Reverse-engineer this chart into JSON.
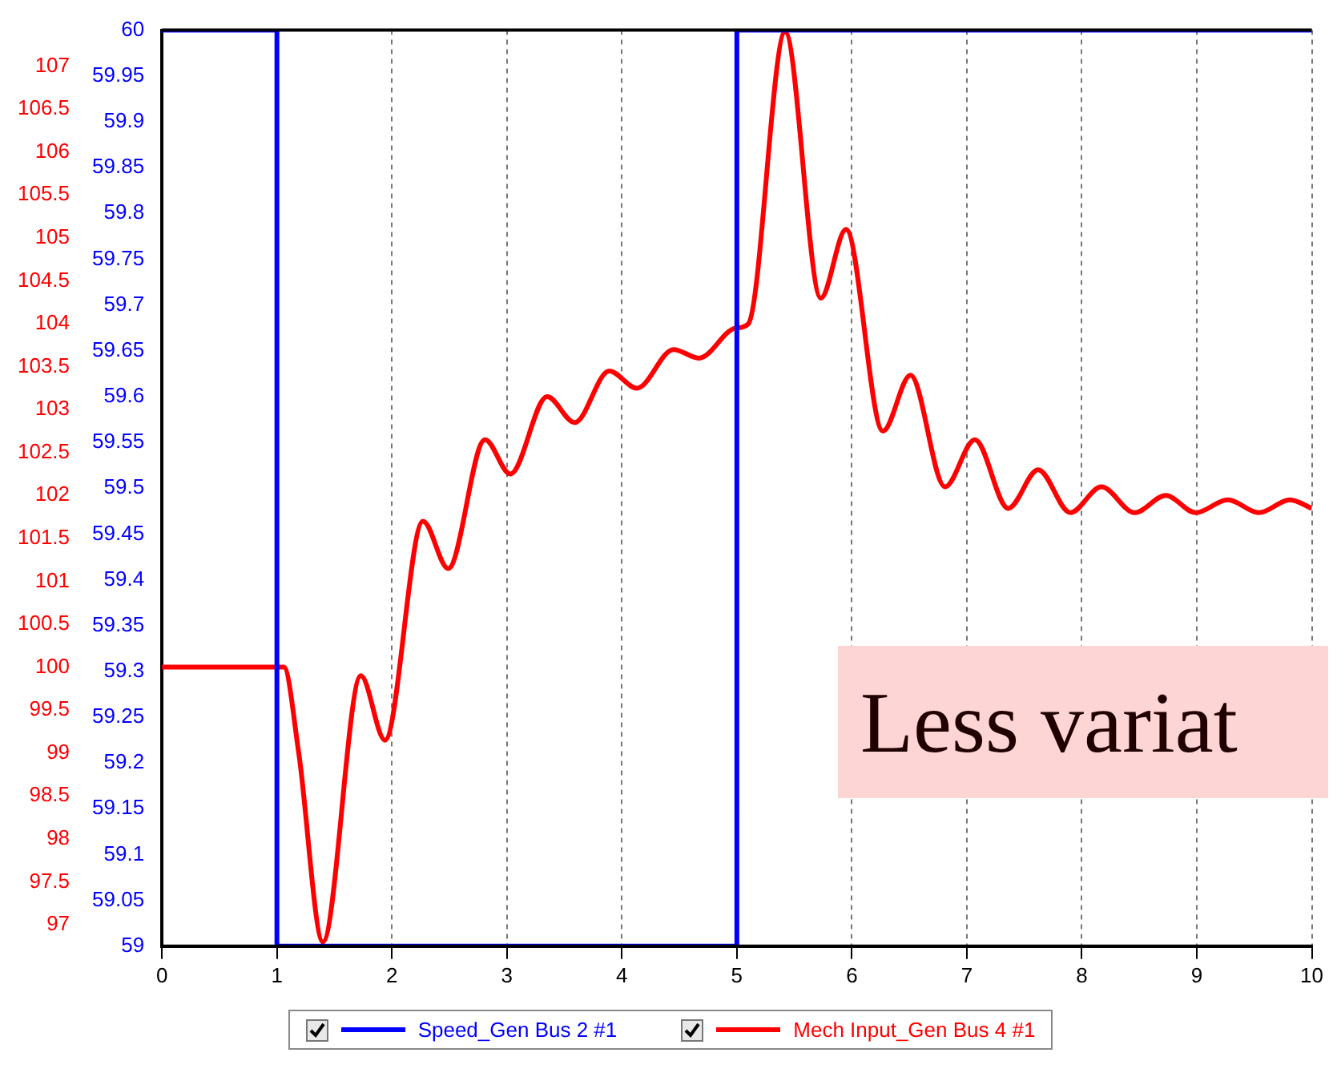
{
  "chart_data": {
    "type": "line",
    "xlim": [
      0,
      10
    ],
    "xticks": [
      0,
      1,
      2,
      3,
      4,
      5,
      6,
      7,
      8,
      9,
      10
    ],
    "ylim": [
      59,
      60
    ],
    "yticks": [
      59,
      59.05,
      59.1,
      59.15,
      59.2,
      59.25,
      59.3,
      59.35,
      59.4,
      59.45,
      59.5,
      59.55,
      59.6,
      59.65,
      59.7,
      59.75,
      59.8,
      59.85,
      59.9,
      59.95,
      60
    ],
    "y2lim": [
      96.75,
      107.42
    ],
    "y2ticks": [
      97,
      97.5,
      98,
      98.5,
      99,
      99.5,
      100,
      100.5,
      101,
      101.5,
      102,
      102.5,
      103,
      103.5,
      104,
      104.5,
      105,
      105.5,
      106,
      106.5,
      107
    ],
    "grid": "x",
    "legend": "bottom",
    "annotations": [
      "Less variat"
    ],
    "series": [
      {
        "name": "Speed_Gen Bus 2 #1",
        "type": "step",
        "color": "#0000ff",
        "x": [
          0,
          1,
          5,
          10
        ],
        "values": [
          60,
          59,
          60,
          60
        ]
      },
      {
        "name": "Mech Input_Gen Bus 4 #1",
        "axis": "y2",
        "color": "#ff0000",
        "x": [
          0,
          1.06,
          1.19,
          1.4,
          1.73,
          1.94,
          2.27,
          2.49,
          2.81,
          3.03,
          3.35,
          3.59,
          3.89,
          4.13,
          4.45,
          4.67,
          4.99,
          5.1,
          5.42,
          5.73,
          5.95,
          6.27,
          6.51,
          6.81,
          7.07,
          7.36,
          7.62,
          7.9,
          8.17,
          8.46,
          8.73,
          8.99,
          9.27,
          9.54,
          9.81,
          10
        ],
        "values": [
          100,
          100,
          99.0,
          96.8,
          99.9,
          99.15,
          101.7,
          101.15,
          102.65,
          102.25,
          103.15,
          102.85,
          103.45,
          103.25,
          103.7,
          103.6,
          103.95,
          104.0,
          107.4,
          104.3,
          105.1,
          102.75,
          103.4,
          102.1,
          102.65,
          101.85,
          102.3,
          101.8,
          102.1,
          101.8,
          102.0,
          101.8,
          101.95,
          101.8,
          101.95,
          101.85
        ]
      }
    ]
  }
}
